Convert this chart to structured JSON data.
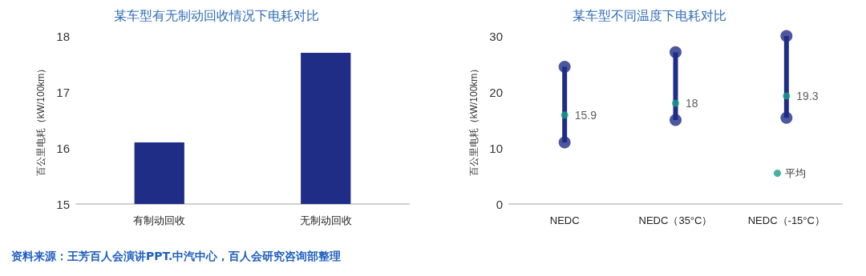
{
  "chart_data": [
    {
      "type": "bar",
      "title": "某车型有无制动回收情况下电耗对比",
      "ylabel": "百公里电耗（kW/100km）",
      "categories": [
        "有制动回收",
        "无制动回收"
      ],
      "series": [
        {
          "color": "#1f2d87",
          "values": [
            16.1,
            17.7
          ]
        }
      ],
      "ylim": [
        15,
        18
      ],
      "yticks": [
        15,
        16,
        17,
        18
      ],
      "grid": false,
      "legend": false,
      "annotations": [
        "资料来源：王芳百人会演讲PPT.中汽中心，百人会研究咨询部整理"
      ]
    },
    {
      "type": "bar",
      "title": "某车型不同温度下电耗对比",
      "ylabel": "百公里电耗（kW/100km）",
      "categories": [
        "NEDC",
        "NEDC（35°C）",
        "NEDC（-15°C）"
      ],
      "series": [
        {
          "color": "#1f2d87",
          "base": [
            11,
            15,
            15.4
          ],
          "values": [
            13.5,
            12.1,
            14.6
          ]
        },
        {
          "type": "scatter",
          "color": "#1f2d87",
          "values": [
            24.5,
            27.1,
            30
          ]
        },
        {
          "type": "scatter",
          "color": "#1f2d87",
          "values": [
            11,
            15,
            15.4
          ]
        },
        {
          "type": "scatter",
          "name": "平均",
          "color": "#1a9e8c",
          "values": [
            15.9,
            18,
            19.3
          ],
          "value_labels": [
            "15.9",
            "18",
            "19.3"
          ]
        }
      ],
      "ylim": [
        0,
        30
      ],
      "yticks": [
        0,
        10,
        20,
        30
      ],
      "grid": false,
      "legend": "bottom right",
      "marker": "circle"
    }
  ]
}
